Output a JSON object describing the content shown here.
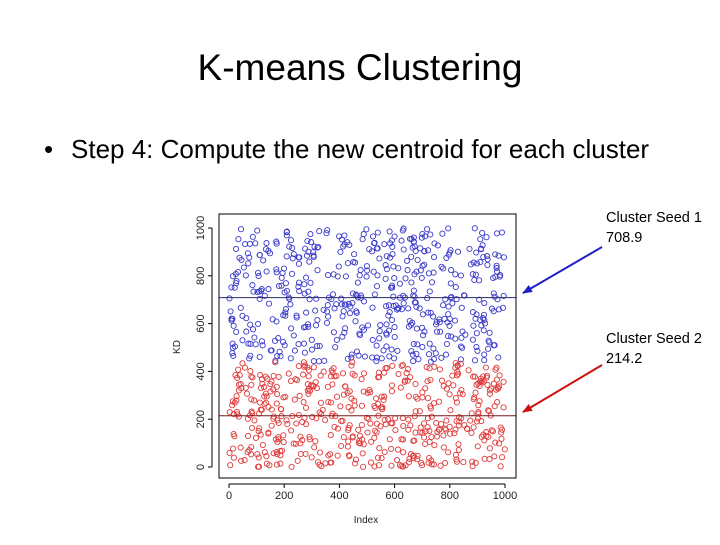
{
  "slide": {
    "title": "K-means Clustering",
    "bullet": "Step 4: Compute the new centroid for each cluster"
  },
  "callouts": [
    {
      "label": "Cluster Seed 1",
      "value": "708.9"
    },
    {
      "label": "Cluster Seed 2",
      "value": "214.2"
    }
  ],
  "colors": {
    "cluster_1": "#3a3acc",
    "cluster_2": "#e03a3a",
    "arrow_1": "#2020c8",
    "arrow_2": "#cc1111"
  },
  "chart_data": {
    "type": "scatter",
    "xlabel": "Index",
    "ylabel": "KD",
    "xlim": [
      0,
      1000
    ],
    "ylim": [
      0,
      1000
    ],
    "x_ticks": [
      0,
      200,
      400,
      600,
      800,
      1000
    ],
    "y_ticks": [
      0,
      200,
      400,
      600,
      800,
      1000
    ],
    "grid": false,
    "series": [
      {
        "n": 500,
        "y_range": [
          440,
          1000
        ],
        "color": "#3a3acc",
        "hline": 708.9
      },
      {
        "n": 500,
        "y_range": [
          0,
          440
        ],
        "color": "#e03a3a",
        "hline": 214.2
      }
    ]
  }
}
